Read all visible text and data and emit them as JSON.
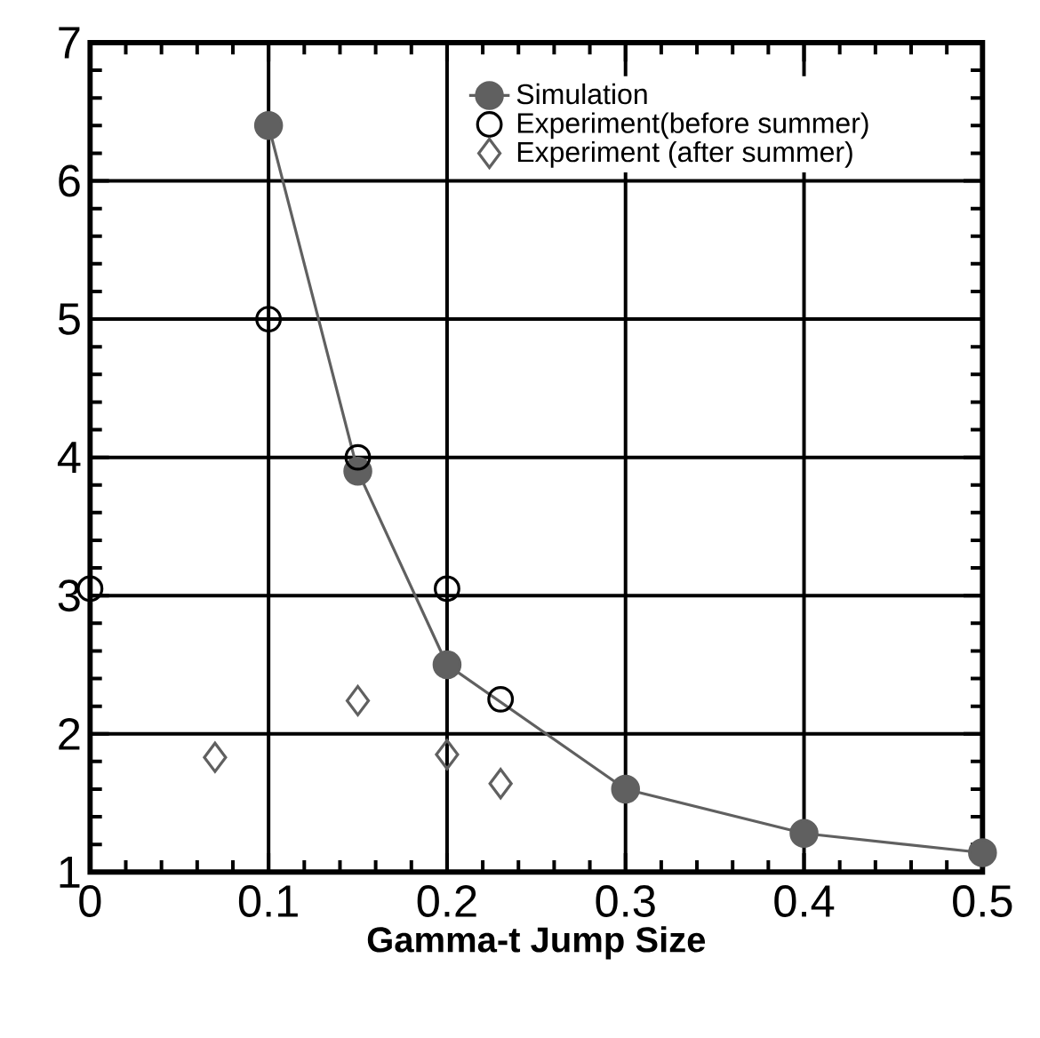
{
  "chart_data": {
    "type": "scatter",
    "xlabel": "Gamma-t Jump Size",
    "xlim": [
      0,
      0.5
    ],
    "ylim": [
      1,
      7
    ],
    "xticks": [
      0,
      0.1,
      0.2,
      0.3,
      0.4,
      0.5
    ],
    "yticks": [
      1,
      2,
      3,
      4,
      5,
      6,
      7
    ],
    "grid": true,
    "legend": "top right",
    "series": [
      {
        "name": "Simulation",
        "type": "line",
        "marker": "circle",
        "color": "#606060",
        "x": [
          0.1,
          0.15,
          0.2,
          0.3,
          0.4,
          0.5
        ],
        "values": [
          6.4,
          3.9,
          2.5,
          1.6,
          1.28,
          1.14
        ]
      },
      {
        "name": "Experiment(before summer)",
        "marker": "circle",
        "color": "#000000",
        "x": [
          0,
          0.1,
          0.15,
          0.2,
          0.23
        ],
        "values": [
          3.05,
          5.0,
          4.0,
          3.05,
          2.25
        ]
      },
      {
        "name": "Experiment (after summer)",
        "marker": "diamond",
        "color": "#606060",
        "x": [
          0.07,
          0.15,
          0.2,
          0.23
        ],
        "values": [
          1.83,
          2.24,
          1.85,
          1.64
        ]
      }
    ]
  }
}
